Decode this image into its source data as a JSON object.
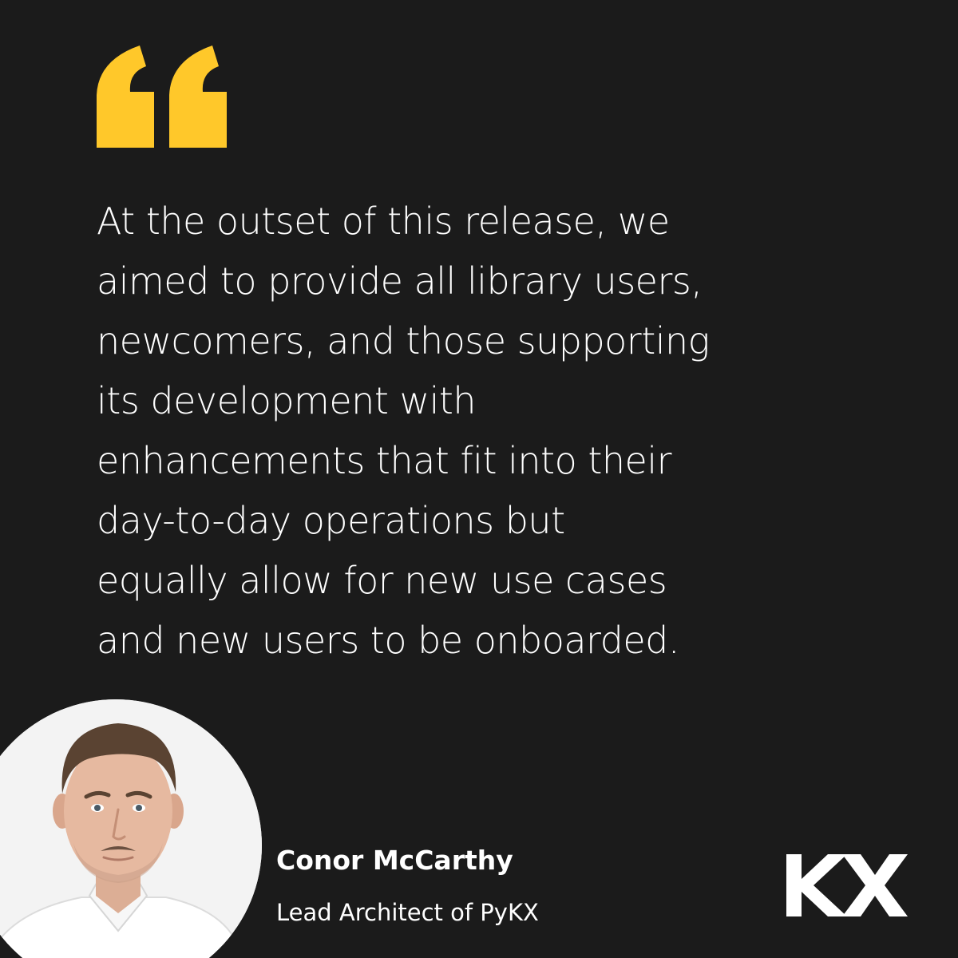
{
  "colors": {
    "background": "#1b1b1b",
    "accent": "#ffc82a",
    "text": "#ffffff"
  },
  "quote": {
    "icon": "quotation-mark-icon",
    "lines": [
      "At the outset of this release, we",
      "aimed to provide all library users,",
      "newcomers, and those supporting",
      "its development with",
      "enhancements that fit into their",
      "day-to-day operations but",
      "equally allow for new use cases",
      "and new users to be onboarded."
    ]
  },
  "author": {
    "name": "Conor McCarthy",
    "role": "Lead Architect of PyKX"
  },
  "logo": {
    "text": "KX"
  }
}
